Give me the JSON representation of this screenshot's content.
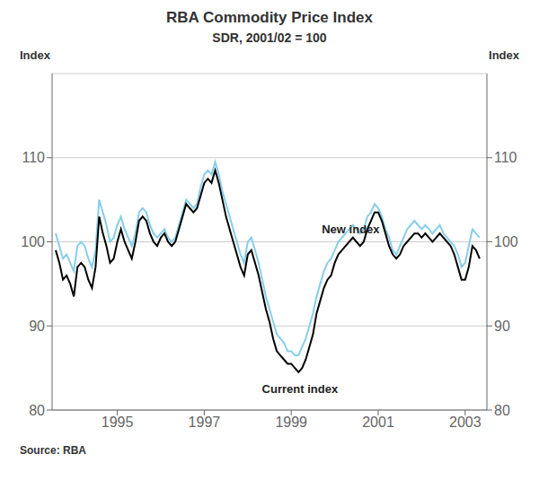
{
  "chart_data": {
    "type": "line",
    "title": "RBA Commodity Price Index",
    "subtitle": "SDR, 2001/02 = 100",
    "y_label": "Index",
    "y2_label": "Index",
    "source": "Source: RBA",
    "grid": true,
    "xlim": [
      1993.5,
      2003.5
    ],
    "xticks": [
      1995,
      1997,
      1999,
      2001,
      2003
    ],
    "ylim": [
      80,
      120
    ],
    "yticks": [
      80,
      90,
      100,
      110
    ],
    "y2lim": [
      80,
      120
    ],
    "y2ticks": [
      80,
      90,
      100,
      110
    ],
    "x": [
      1993.583,
      1993.667,
      1993.75,
      1993.833,
      1993.917,
      1994.0,
      1994.083,
      1994.167,
      1994.25,
      1994.333,
      1994.417,
      1994.5,
      1994.583,
      1994.667,
      1994.75,
      1994.833,
      1994.917,
      1995.0,
      1995.083,
      1995.167,
      1995.25,
      1995.333,
      1995.417,
      1995.5,
      1995.583,
      1995.667,
      1995.75,
      1995.833,
      1995.917,
      1996.0,
      1996.083,
      1996.167,
      1996.25,
      1996.333,
      1996.417,
      1996.5,
      1996.583,
      1996.667,
      1996.75,
      1996.833,
      1996.917,
      1997.0,
      1997.083,
      1997.167,
      1997.25,
      1997.333,
      1997.417,
      1997.5,
      1997.583,
      1997.667,
      1997.75,
      1997.833,
      1997.917,
      1998.0,
      1998.083,
      1998.167,
      1998.25,
      1998.333,
      1998.417,
      1998.5,
      1998.583,
      1998.667,
      1998.75,
      1998.833,
      1998.917,
      1999.0,
      1999.083,
      1999.167,
      1999.25,
      1999.333,
      1999.417,
      1999.5,
      1999.583,
      1999.667,
      1999.75,
      1999.833,
      1999.917,
      2000.0,
      2000.083,
      2000.167,
      2000.25,
      2000.333,
      2000.417,
      2000.5,
      2000.583,
      2000.667,
      2000.75,
      2000.833,
      2000.917,
      2001.0,
      2001.083,
      2001.167,
      2001.25,
      2001.333,
      2001.417,
      2001.5,
      2001.583,
      2001.667,
      2001.75,
      2001.833,
      2001.917,
      2002.0,
      2002.083,
      2002.167,
      2002.25,
      2002.333,
      2002.417,
      2002.5,
      2002.583,
      2002.667,
      2002.75,
      2002.833,
      2002.917,
      2003.0,
      2003.083,
      2003.167,
      2003.25,
      2003.333
    ],
    "series": [
      {
        "name": "New index",
        "color": "#87CEEB",
        "values": [
          101.0,
          99.5,
          98.0,
          98.5,
          97.5,
          96.5,
          99.5,
          100.0,
          99.5,
          98.0,
          97.0,
          99.0,
          105.0,
          103.5,
          102.0,
          100.0,
          100.5,
          102.0,
          103.0,
          101.5,
          100.5,
          99.5,
          101.0,
          103.5,
          104.0,
          103.5,
          102.0,
          101.0,
          100.5,
          101.0,
          101.5,
          100.5,
          100.0,
          100.5,
          102.0,
          103.5,
          105.0,
          104.5,
          104.0,
          104.5,
          106.5,
          108.0,
          108.5,
          108.0,
          109.5,
          108.0,
          106.0,
          104.5,
          103.0,
          101.5,
          100.0,
          98.5,
          97.5,
          100.0,
          100.5,
          99.0,
          97.5,
          95.5,
          93.5,
          92.0,
          90.5,
          89.0,
          88.5,
          88.0,
          87.0,
          87.0,
          86.5,
          86.5,
          87.5,
          88.5,
          90.0,
          91.5,
          93.5,
          95.0,
          96.5,
          97.5,
          98.0,
          99.0,
          100.0,
          100.5,
          101.0,
          101.5,
          102.0,
          101.5,
          101.0,
          101.5,
          103.0,
          103.5,
          104.5,
          104.0,
          103.0,
          101.5,
          100.5,
          99.0,
          98.5,
          99.5,
          100.5,
          101.5,
          102.0,
          102.5,
          102.0,
          101.5,
          102.0,
          101.5,
          101.0,
          101.5,
          102.0,
          101.0,
          100.5,
          100.0,
          99.5,
          98.5,
          97.0,
          97.5,
          99.5,
          101.5,
          101.0,
          100.5
        ]
      },
      {
        "name": "Current index",
        "color": "#000000",
        "values": [
          99.0,
          97.5,
          95.5,
          96.0,
          95.0,
          93.5,
          97.0,
          97.5,
          97.0,
          95.5,
          94.5,
          97.0,
          103.0,
          101.0,
          99.5,
          97.5,
          98.0,
          100.0,
          101.5,
          100.0,
          99.0,
          98.0,
          100.0,
          102.5,
          103.0,
          102.5,
          101.0,
          100.0,
          99.5,
          100.5,
          101.0,
          100.0,
          99.5,
          100.0,
          101.5,
          103.0,
          104.5,
          104.0,
          103.5,
          104.0,
          105.5,
          107.0,
          107.5,
          107.0,
          108.5,
          107.0,
          105.0,
          103.0,
          101.5,
          100.0,
          98.5,
          97.0,
          96.0,
          98.5,
          99.0,
          97.5,
          96.0,
          94.0,
          92.0,
          90.5,
          88.5,
          87.0,
          86.5,
          86.0,
          85.5,
          85.5,
          85.0,
          84.5,
          85.0,
          86.0,
          87.5,
          89.0,
          91.5,
          93.0,
          94.5,
          95.5,
          96.0,
          97.5,
          98.5,
          99.0,
          99.5,
          100.0,
          100.5,
          100.0,
          99.5,
          100.0,
          101.5,
          102.5,
          103.5,
          103.5,
          102.5,
          101.0,
          99.5,
          98.5,
          98.0,
          98.5,
          99.5,
          100.0,
          100.5,
          101.0,
          101.0,
          100.5,
          101.0,
          100.5,
          100.0,
          100.5,
          101.0,
          100.5,
          100.0,
          99.5,
          98.5,
          97.0,
          95.5,
          95.5,
          97.0,
          99.5,
          99.0,
          98.0
        ]
      }
    ],
    "annotations": [
      {
        "text": "New index",
        "x": 1999.6,
        "y": 101.5
      },
      {
        "text": "Current index",
        "x": 1999.2,
        "y": 83.5
      }
    ]
  }
}
